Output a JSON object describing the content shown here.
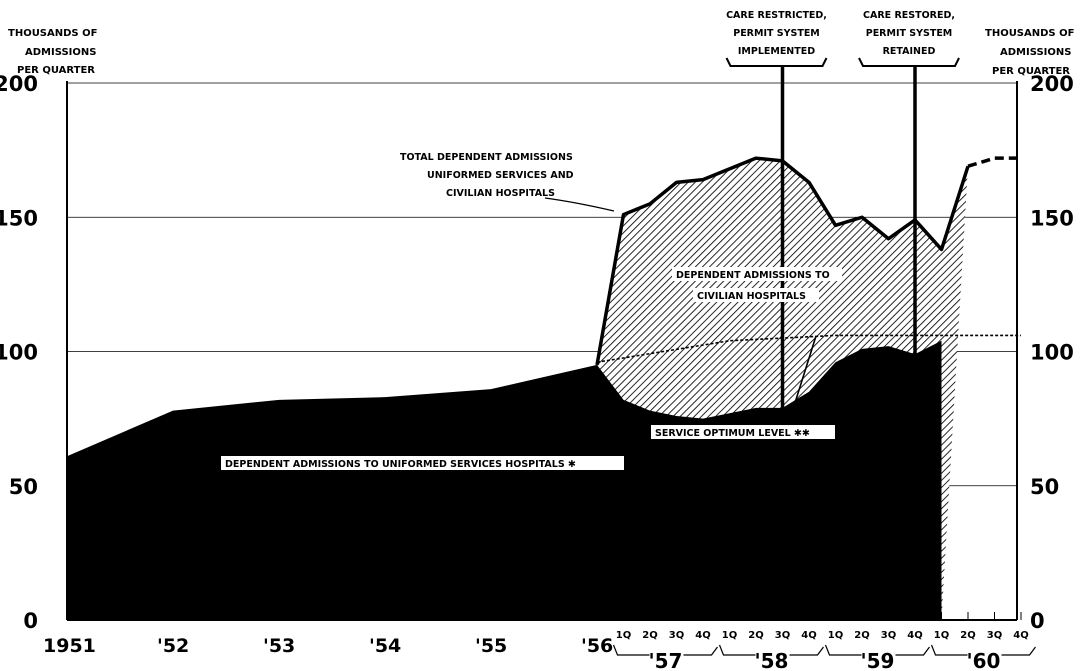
{
  "chart_data": {
    "type": "area",
    "y_axis_title_left": [
      "THOUSANDS OF",
      "ADMISSIONS",
      "PER QUARTER"
    ],
    "y_axis_title_right": [
      "THOUSANDS OF",
      "ADMISSIONS",
      "PER QUARTER"
    ],
    "ylim": [
      0,
      200
    ],
    "yticks": [
      "0",
      "50",
      "100",
      "150",
      "200"
    ],
    "year_ticks": [
      "1951",
      "'52",
      "'53",
      "'54",
      "'55",
      "'56"
    ],
    "quarter_ticks": [
      "1Q",
      "2Q",
      "3Q",
      "4Q",
      "1Q",
      "2Q",
      "3Q",
      "4Q",
      "1Q",
      "2Q",
      "3Q",
      "4Q",
      "1Q",
      "2Q",
      "3Q",
      "4Q"
    ],
    "year_groups": [
      "'57",
      "'58",
      "'59",
      "'60"
    ],
    "grid": true,
    "series": [
      {
        "name": "DEPENDENT ADMISSIONS TO UNIFORMED SERVICES HOSPITALS ✱",
        "points": [
          {
            "x": "1951",
            "y": 61
          },
          {
            "x": "'52",
            "y": 78
          },
          {
            "x": "'53",
            "y": 82
          },
          {
            "x": "'54",
            "y": 83
          },
          {
            "x": "'55",
            "y": 86
          },
          {
            "x": "'56",
            "y": 95
          },
          {
            "x": "1Q '57",
            "y": 82
          },
          {
            "x": "2Q '57",
            "y": 78
          },
          {
            "x": "3Q '57",
            "y": 76
          },
          {
            "x": "4Q '57",
            "y": 75
          },
          {
            "x": "1Q '58",
            "y": 77
          },
          {
            "x": "2Q '58",
            "y": 79
          },
          {
            "x": "3Q '58",
            "y": 79
          },
          {
            "x": "4Q '58",
            "y": 85
          },
          {
            "x": "1Q '59",
            "y": 96
          },
          {
            "x": "2Q '59",
            "y": 101
          },
          {
            "x": "3Q '59",
            "y": 102
          },
          {
            "x": "4Q '59",
            "y": 99
          },
          {
            "x": "1Q '60",
            "y": 104
          }
        ]
      },
      {
        "name": "TOTAL DEPENDENT ADMISSIONS UNIFORMED SERVICES AND CIVILIAN HOSPITALS",
        "points": [
          {
            "x": "'56",
            "y": 95
          },
          {
            "x": "1Q '57",
            "y": 151
          },
          {
            "x": "2Q '57",
            "y": 155
          },
          {
            "x": "3Q '57",
            "y": 163
          },
          {
            "x": "4Q '57",
            "y": 164
          },
          {
            "x": "1Q '58",
            "y": 168
          },
          {
            "x": "2Q '58",
            "y": 172
          },
          {
            "x": "3Q '58",
            "y": 171
          },
          {
            "x": "4Q '58",
            "y": 163
          },
          {
            "x": "1Q '59",
            "y": 147
          },
          {
            "x": "2Q '59",
            "y": 150
          },
          {
            "x": "3Q '59",
            "y": 142
          },
          {
            "x": "4Q '59",
            "y": 149
          },
          {
            "x": "1Q '60",
            "y": 138
          },
          {
            "x": "2Q '60",
            "y": 169
          },
          {
            "x": "3Q '60",
            "y": 172
          },
          {
            "x": "4Q '60",
            "y": 172
          }
        ],
        "projection_from": "2Q '60"
      },
      {
        "name": "SERVICE OPTIMUM LEVEL ✱✱",
        "points": [
          {
            "x": "'56",
            "y": 96
          },
          {
            "x": "1Q '58",
            "y": 104
          },
          {
            "x": "1Q '59",
            "y": 106
          },
          {
            "x": "4Q '60",
            "y": 106
          }
        ]
      }
    ],
    "area_label": [
      "DEPENDENT ADMISSIONS TO",
      "CIVILIAN HOSPITALS"
    ],
    "total_label": [
      "TOTAL DEPENDENT ADMISSIONS",
      "UNIFORMED SERVICES AND",
      "CIVILIAN HOSPITALS"
    ],
    "event_markers": [
      {
        "at": "3Q '58",
        "label": [
          "CARE RESTRICTED,",
          "PERMIT SYSTEM",
          "IMPLEMENTED"
        ]
      },
      {
        "at": "4Q '59",
        "label": [
          "CARE RESTORED,",
          "PERMIT SYSTEM",
          "RETAINED"
        ]
      }
    ]
  }
}
